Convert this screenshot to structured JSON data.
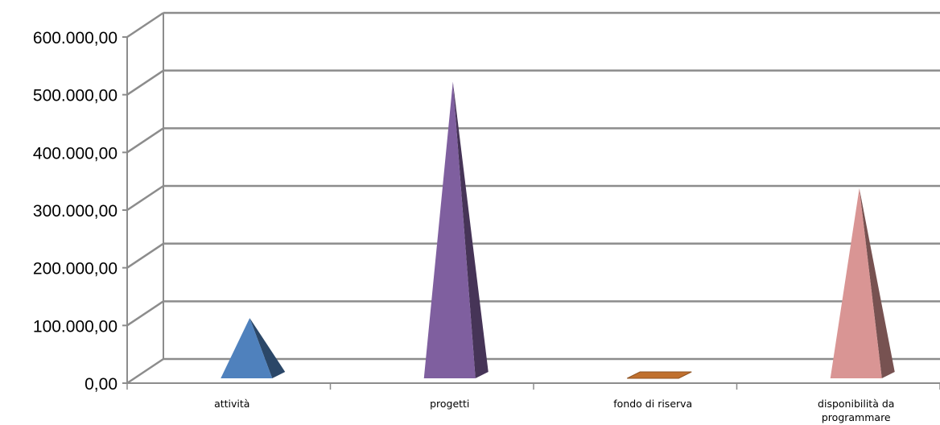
{
  "chart_data": {
    "type": "bar",
    "style": "3d-pyramid",
    "categories": [
      "attività",
      "progetti",
      "fondo di riserva",
      "disponibilità da programmare"
    ],
    "category_lines": [
      [
        "attività"
      ],
      [
        "progetti"
      ],
      [
        "fondo di riserva"
      ],
      [
        "disponibilità da",
        "programmare"
      ]
    ],
    "values": [
      110000,
      520000,
      0,
      335000
    ],
    "colors": {
      "attività": "#4F81BD",
      "progetti": "#7F5F9F",
      "fondo di riserva": "#C0702E",
      "disponibilità da programmare": "#D99594"
    },
    "ylim": [
      0,
      600000
    ],
    "yticks": [
      0,
      100000,
      200000,
      300000,
      400000,
      500000,
      600000
    ],
    "ytick_labels": [
      "0,00",
      "100.000,00",
      "200.000,00",
      "300.000,00",
      "400.000,00",
      "500.000,00",
      "600.000,00"
    ],
    "grid": true
  }
}
